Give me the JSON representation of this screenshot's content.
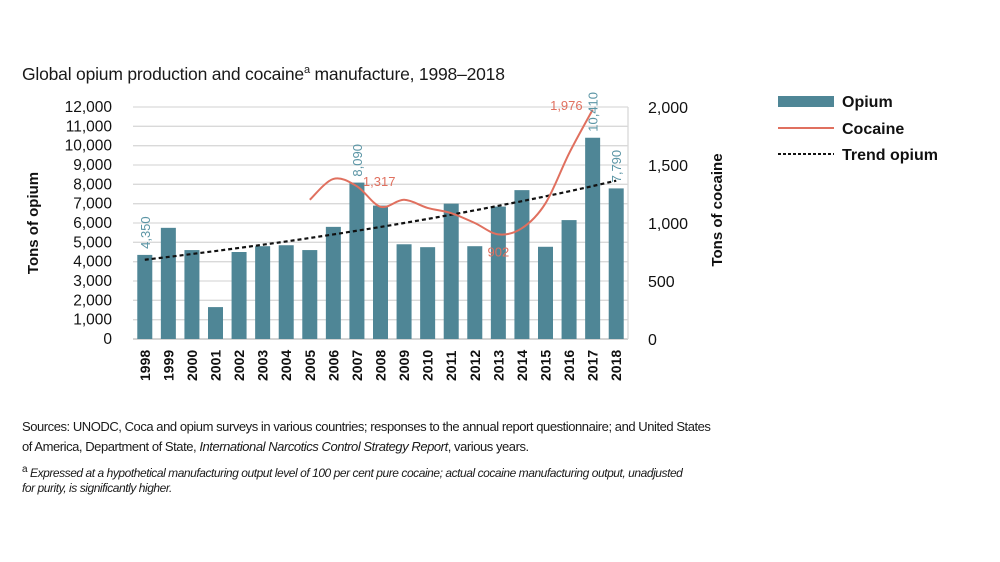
{
  "title": {
    "main": "Global opium production and cocaine",
    "sup": "a",
    "rest": " manufacture, 1998–2018"
  },
  "chart_data": {
    "type": "bar",
    "title": "Global opium production and cocaineᵃ manufacture, 1998–2018",
    "categories": [
      "1998",
      "1999",
      "2000",
      "2001",
      "2002",
      "2003",
      "2004",
      "2005",
      "2006",
      "2007",
      "2008",
      "2009",
      "2010",
      "2011",
      "2012",
      "2013",
      "2014",
      "2015",
      "2016",
      "2017",
      "2018"
    ],
    "ylabel": "Tons of opium",
    "y2label": "Tons of cocaine",
    "ylim": [
      0,
      12000
    ],
    "y2lim": [
      0,
      2000
    ],
    "yticks": [
      "0",
      "1,000",
      "2,000",
      "3,000",
      "4,000",
      "5,000",
      "6,000",
      "7,000",
      "8,000",
      "9,000",
      "10,000",
      "11,000",
      "12,000"
    ],
    "y2ticks": [
      "0",
      "500",
      "1,000",
      "1,500",
      "2,000"
    ],
    "grid": true,
    "legend_position": "right",
    "series": [
      {
        "name": "Opium",
        "type": "bar",
        "axis": "left",
        "color": "#4f8696",
        "values": [
          4350,
          5750,
          4600,
          1650,
          4500,
          4800,
          4850,
          4600,
          5800,
          8090,
          6900,
          4900,
          4750,
          7000,
          4800,
          6850,
          7700,
          4770,
          6150,
          10410,
          7790
        ]
      },
      {
        "name": "Cocaine",
        "type": "line",
        "axis": "right",
        "color": "#e0705f",
        "values": [
          null,
          null,
          null,
          null,
          null,
          null,
          null,
          1200,
          1380,
          1317,
          1140,
          1200,
          1130,
          1085,
          1000,
          902,
          955,
          1170,
          1600,
          1976,
          null
        ]
      },
      {
        "name": "Trend opium",
        "type": "line",
        "axis": "left",
        "style": "dotted",
        "color": "#111111",
        "values": [
          4100,
          4245,
          4395,
          4550,
          4710,
          4875,
          5045,
          5225,
          5410,
          5600,
          5795,
          6000,
          6210,
          6430,
          6655,
          6890,
          7130,
          7380,
          7640,
          7910,
          8190
        ]
      }
    ],
    "data_labels": [
      {
        "series": "Opium",
        "category": "1998",
        "text": "4,350"
      },
      {
        "series": "Opium",
        "category": "2007",
        "text": "8,090"
      },
      {
        "series": "Opium",
        "category": "2017",
        "text": "10,410"
      },
      {
        "series": "Opium",
        "category": "2018",
        "text": "7,790"
      },
      {
        "series": "Cocaine",
        "category": "2007",
        "text": "1,317"
      },
      {
        "series": "Cocaine",
        "category": "2013",
        "text": "902"
      },
      {
        "series": "Cocaine",
        "category": "2017",
        "text": "1,976"
      }
    ]
  },
  "footer": {
    "sources_1": "Sources: UNODC, Coca and opium surveys in various countries; responses to the annual report questionnaire; and United States",
    "sources_2a": "of America, Department of State, ",
    "sources_2b": "International Narcotics Control Strategy Report",
    "sources_2c": ", various years.",
    "note_mark": "a",
    "note_1": " Expressed at a hypothetical manufacturing output level of 100 per cent pure cocaine; actual cocaine manufacturing output, unadjusted",
    "note_2": "for purity, is significantly higher."
  }
}
